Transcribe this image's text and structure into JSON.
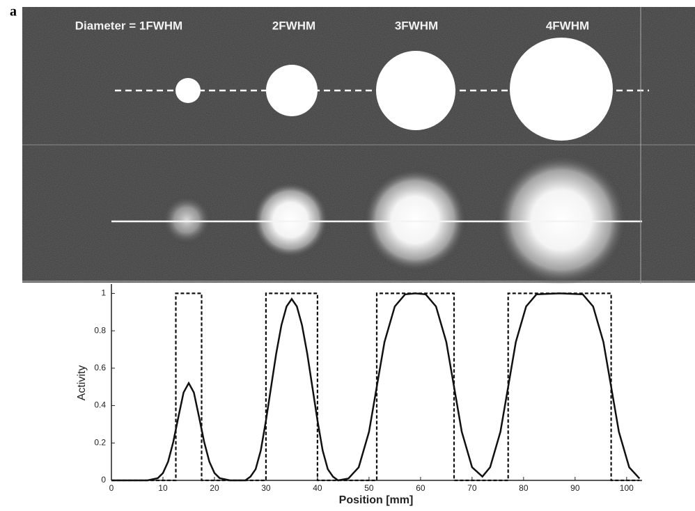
{
  "figure_label": "a",
  "image_labels": [
    "Diameter = 1FWHM",
    "2FWHM",
    "3FWHM",
    "4FWHM"
  ],
  "chart_data": {
    "type": "line",
    "x_label": "Position [mm]",
    "y_label": "Activity",
    "xlim": [
      0,
      103
    ],
    "ylim": [
      0,
      1.05
    ],
    "xticks": [
      0,
      10,
      20,
      30,
      40,
      50,
      60,
      70,
      80,
      90,
      100
    ],
    "yticks": [
      0,
      0.2,
      0.4,
      0.6,
      0.8,
      1
    ],
    "grid": false,
    "series": [
      {
        "color": "#111111",
        "line_style": "dashed",
        "x": [
          0,
          12.5,
          12.5,
          17.5,
          17.5,
          30,
          30,
          40,
          40,
          51.5,
          51.5,
          66.5,
          66.5,
          77,
          77,
          97,
          97,
          102.5
        ],
        "values": [
          0,
          0,
          1,
          1,
          0,
          0,
          1,
          1,
          0,
          0,
          1,
          1,
          0,
          0,
          1,
          1,
          0,
          0
        ]
      },
      {
        "color": "#111111",
        "line_style": "solid",
        "x": [
          0,
          7,
          9,
          10,
          11,
          12,
          13,
          14,
          15,
          16,
          17,
          18,
          19,
          20,
          21,
          23,
          26,
          27,
          28,
          29,
          30,
          31,
          32,
          33,
          34,
          35,
          36,
          37,
          38,
          39,
          40,
          41,
          42,
          43,
          44,
          46,
          48,
          50,
          51.5,
          53,
          55,
          57,
          59,
          61,
          63,
          65,
          66.5,
          68,
          70,
          72,
          73.5,
          75.5,
          77,
          78.5,
          80.5,
          82.5,
          87,
          91.5,
          93.5,
          95.5,
          97,
          98.5,
          100.5,
          102.5
        ],
        "values": [
          0,
          0,
          0.012,
          0.039,
          0.1,
          0.205,
          0.34,
          0.47,
          0.52,
          0.47,
          0.34,
          0.205,
          0.1,
          0.039,
          0.012,
          0,
          0,
          0.02,
          0.06,
          0.16,
          0.32,
          0.5,
          0.68,
          0.83,
          0.93,
          0.97,
          0.93,
          0.83,
          0.68,
          0.5,
          0.32,
          0.16,
          0.06,
          0.02,
          0,
          0.01,
          0.07,
          0.26,
          0.5,
          0.74,
          0.93,
          0.995,
          1,
          0.995,
          0.93,
          0.74,
          0.5,
          0.26,
          0.07,
          0.02,
          0.07,
          0.26,
          0.5,
          0.74,
          0.93,
          0.995,
          1,
          0.995,
          0.93,
          0.74,
          0.5,
          0.26,
          0.07,
          0.01
        ]
      }
    ]
  }
}
